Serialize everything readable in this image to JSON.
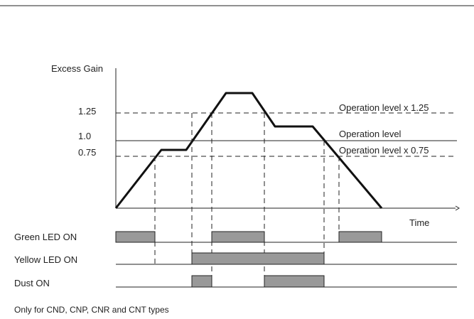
{
  "axis": {
    "y_label": "Excess Gain",
    "x_label": "Time"
  },
  "levels": [
    {
      "tick": "1.25",
      "label": "Operation level x 1.25"
    },
    {
      "tick": "1.0",
      "label": "Operation level"
    },
    {
      "tick": "0.75",
      "label": "Operation level x 0.75"
    }
  ],
  "rows": [
    {
      "label": "Green LED ON"
    },
    {
      "label": "Yellow LED ON"
    },
    {
      "label": "Dust ON"
    }
  ],
  "footnote": "Only for CND, CNP, CNR and CNT types"
}
